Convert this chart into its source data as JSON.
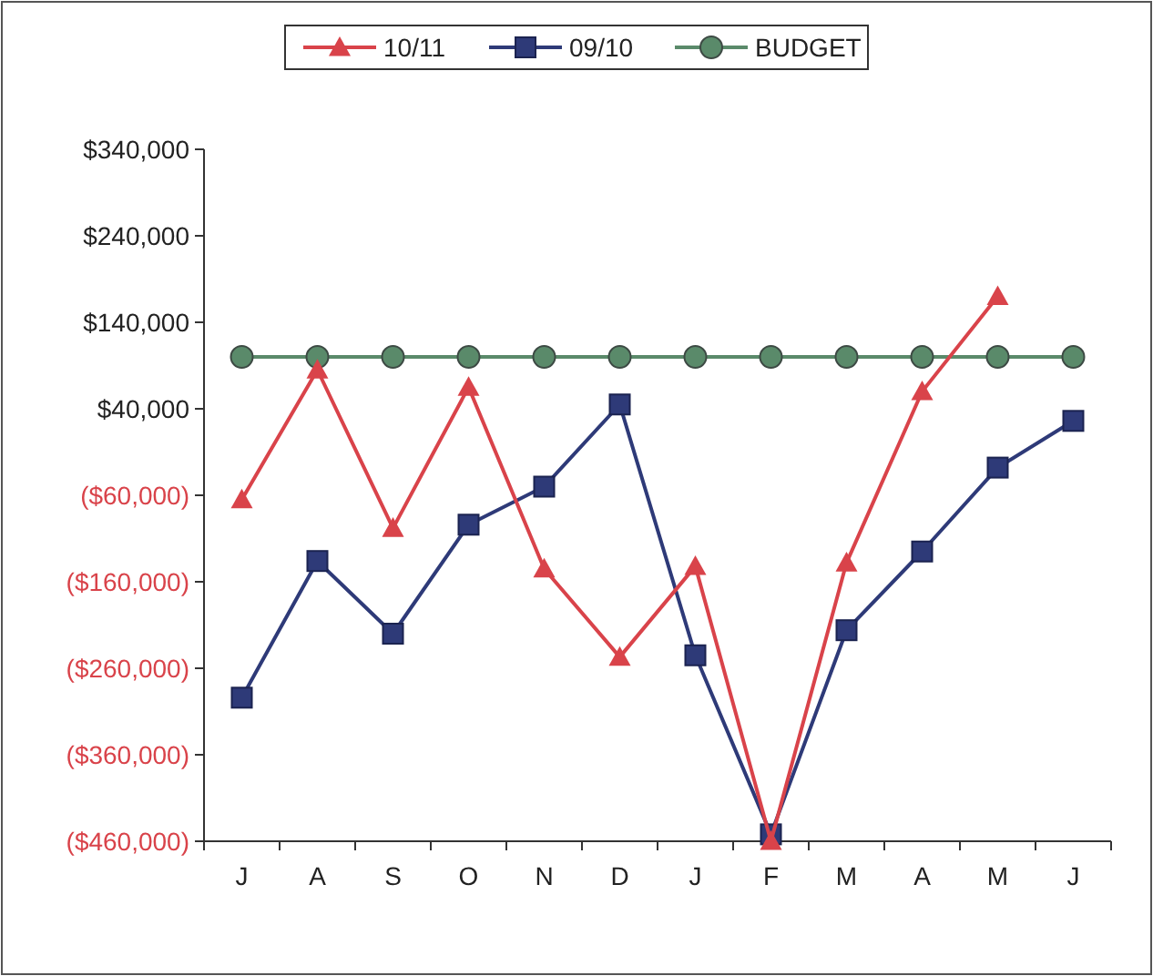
{
  "chart_data": {
    "type": "line",
    "categories": [
      "J",
      "A",
      "S",
      "O",
      "N",
      "D",
      "J",
      "F",
      "M",
      "A",
      "M",
      "J"
    ],
    "series": [
      {
        "name": "10/11",
        "color": "#d9434a",
        "marker": "triangle",
        "values": [
          -65000,
          85000,
          -98000,
          65000,
          -145000,
          -247000,
          -142000,
          -460000,
          -138000,
          60000,
          170000,
          null
        ]
      },
      {
        "name": "09/10",
        "color": "#2e3a78",
        "marker": "square",
        "values": [
          -294000,
          -136000,
          -220000,
          -94000,
          -50000,
          45000,
          -245000,
          -452000,
          -216000,
          -125000,
          -28000,
          26000
        ]
      },
      {
        "name": "BUDGET",
        "color": "#5a8a6a",
        "marker": "circle",
        "values": [
          100000,
          100000,
          100000,
          100000,
          100000,
          100000,
          100000,
          100000,
          100000,
          100000,
          100000,
          100000
        ]
      }
    ],
    "ylim": [
      -460000,
      340000
    ],
    "yticks": [
      {
        "value": -460000,
        "label": "($460,000)"
      },
      {
        "value": -360000,
        "label": "($360,000)"
      },
      {
        "value": -260000,
        "label": "($260,000)"
      },
      {
        "value": -160000,
        "label": "($160,000)"
      },
      {
        "value": -60000,
        "label": "($60,000)"
      },
      {
        "value": 40000,
        "label": "$40,000"
      },
      {
        "value": 140000,
        "label": "$140,000"
      },
      {
        "value": 240000,
        "label": "$240,000"
      },
      {
        "value": 340000,
        "label": "$340,000"
      }
    ],
    "grid": false,
    "legend": "top",
    "line_style": "solid"
  }
}
